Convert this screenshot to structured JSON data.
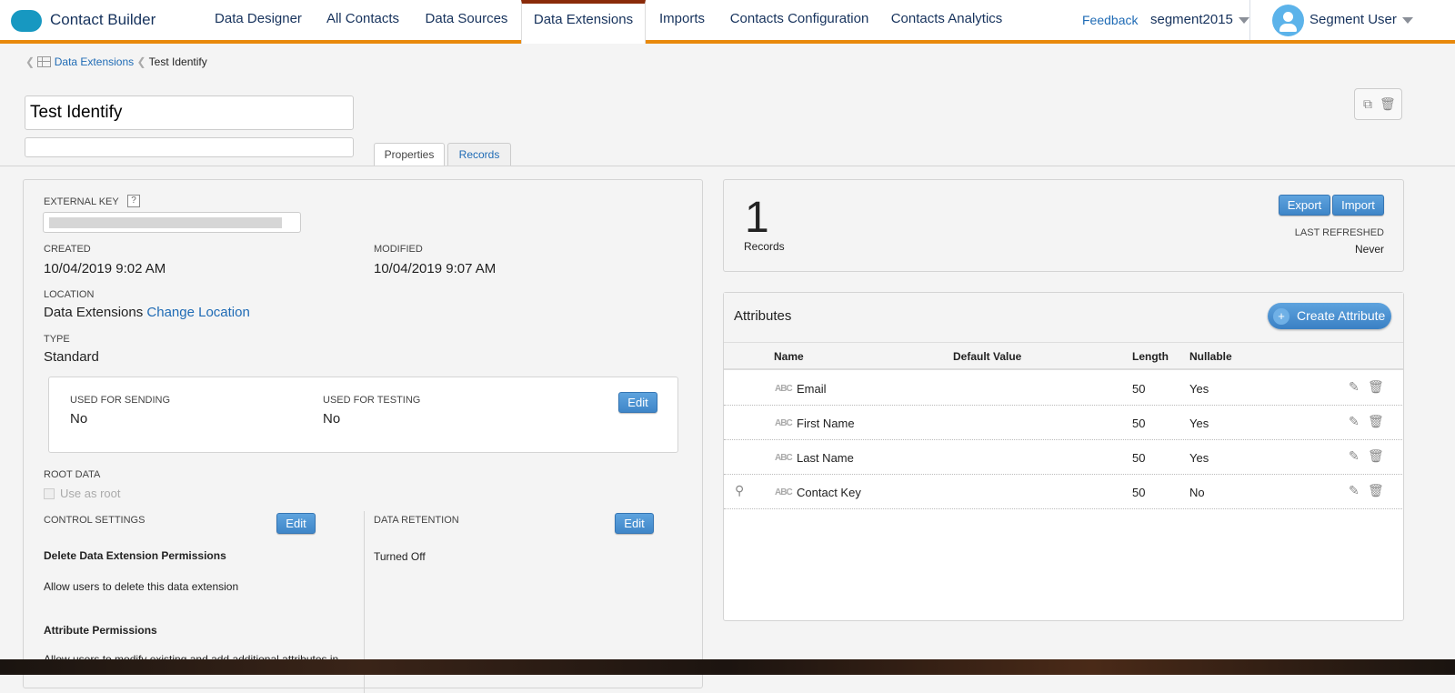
{
  "app": {
    "title": "Contact Builder",
    "brand_color": "#1798c1",
    "accent": "#e8890c"
  },
  "nav": {
    "items": [
      {
        "label": "Data Designer"
      },
      {
        "label": "All Contacts"
      },
      {
        "label": "Data Sources"
      },
      {
        "label": "Data Extensions",
        "active": true
      },
      {
        "label": "Imports"
      },
      {
        "label": "Contacts Configuration"
      },
      {
        "label": "Contacts Analytics"
      }
    ],
    "feedback": "Feedback",
    "account": "segment2015",
    "user": "Segment User"
  },
  "breadcrumb": {
    "parent": "Data Extensions",
    "current": "Test Identify"
  },
  "header": {
    "name_value": "Test Identify",
    "description_value": "",
    "tabs": [
      {
        "label": "Properties",
        "active": true
      },
      {
        "label": "Records"
      }
    ]
  },
  "properties": {
    "external_key_label": "EXTERNAL KEY",
    "help": "?",
    "created_label": "CREATED",
    "created": "10/04/2019 9:02 AM",
    "modified_label": "MODIFIED",
    "modified": "10/04/2019 9:07 AM",
    "location_label": "LOCATION",
    "location": "Data Extensions",
    "change_location": "Change Location",
    "type_label": "TYPE",
    "type": "Standard",
    "sending_label": "USED FOR SENDING",
    "sending": "No",
    "testing_label": "USED FOR TESTING",
    "testing": "No",
    "edit": "Edit",
    "root_label": "ROOT DATA",
    "use_as_root": "Use as root",
    "control_label": "CONTROL SETTINGS",
    "retention_label": "DATA RETENTION",
    "retention": "Turned Off",
    "delete_perm_title": "Delete Data Extension Permissions",
    "delete_perm_text": "Allow users to delete this data extension",
    "attr_perm_title": "Attribute Permissions",
    "attr_perm_text": "Allow users to modify existing and add additional attributes in"
  },
  "records": {
    "count": "1",
    "label": "Records",
    "export": "Export",
    "import": "Import",
    "last_refreshed_label": "LAST REFRESHED",
    "last_refreshed": "Never"
  },
  "attributes": {
    "title": "Attributes",
    "create": "Create Attribute",
    "columns": [
      "Name",
      "Default Value",
      "Length",
      "Nullable"
    ],
    "rows": [
      {
        "type": "ABC",
        "name": "Email",
        "default": "",
        "length": "50",
        "nullable": "Yes",
        "key": false
      },
      {
        "type": "ABC",
        "name": "First Name",
        "default": "",
        "length": "50",
        "nullable": "Yes",
        "key": false
      },
      {
        "type": "ABC",
        "name": "Last Name",
        "default": "",
        "length": "50",
        "nullable": "Yes",
        "key": false
      },
      {
        "type": "ABC",
        "name": "Contact Key",
        "default": "",
        "length": "50",
        "nullable": "No",
        "key": true
      }
    ]
  }
}
